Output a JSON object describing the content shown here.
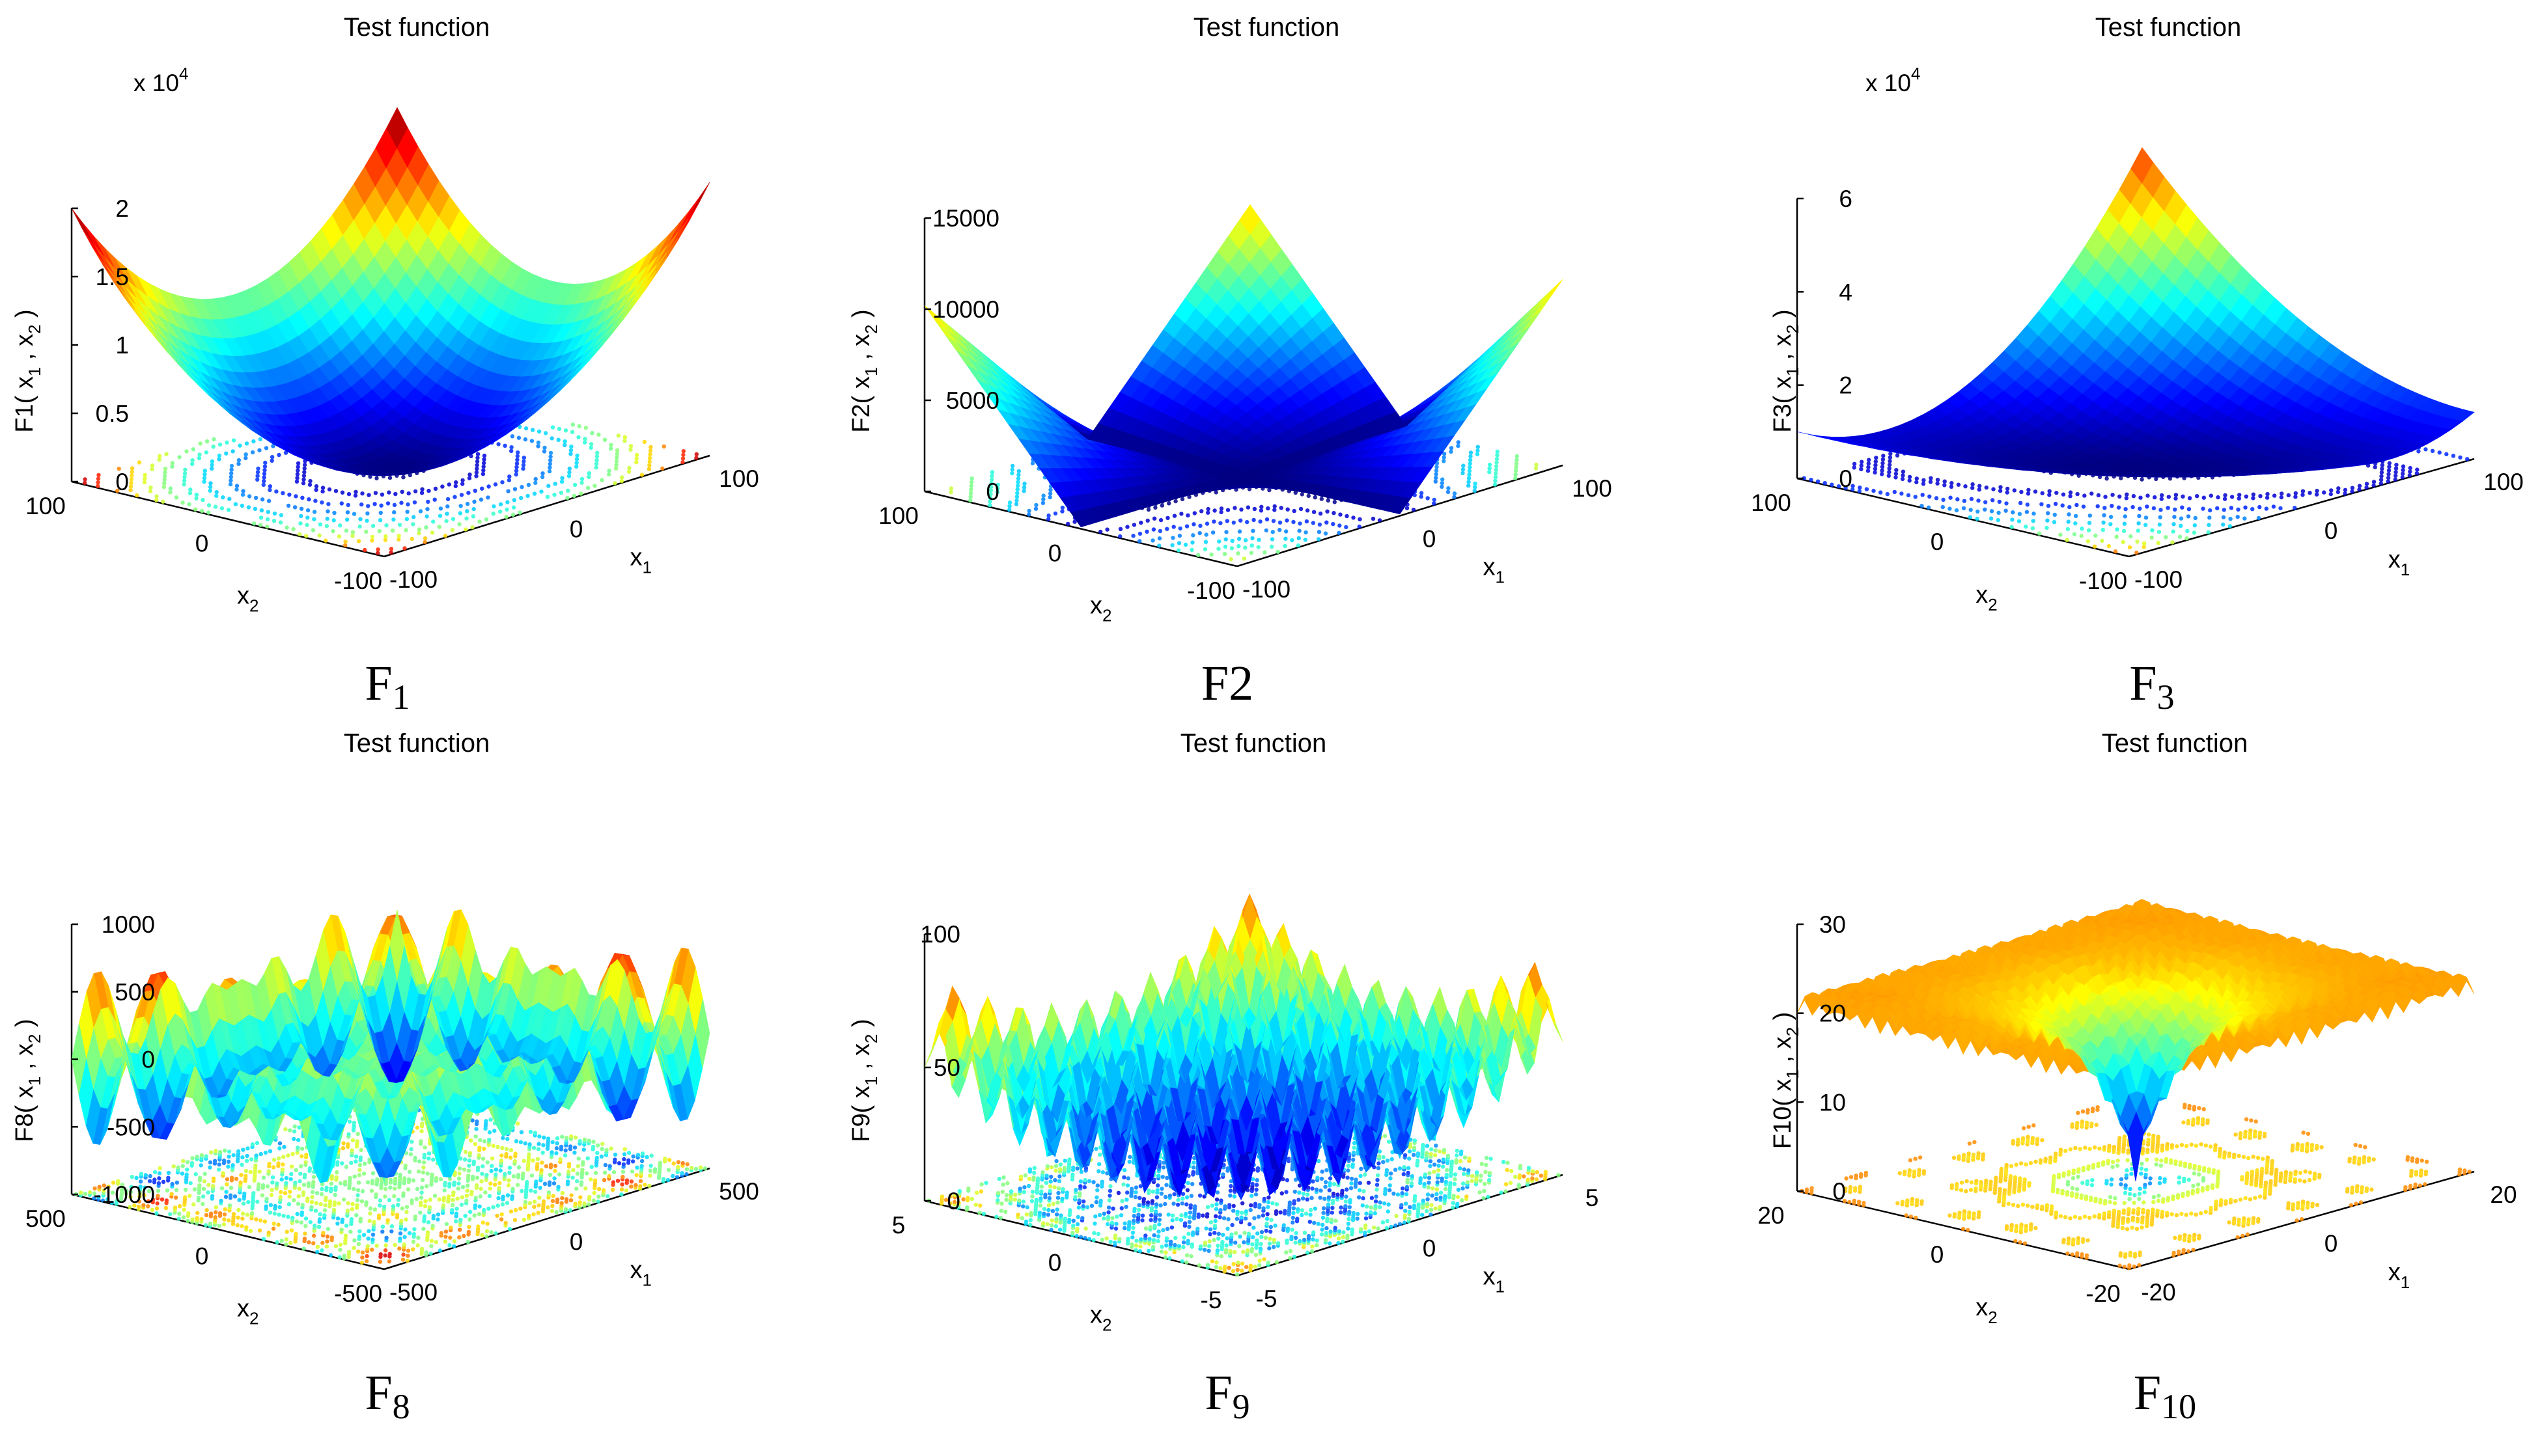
{
  "chart_data": [
    {
      "type": "surface",
      "function": "F1",
      "title": "Test function",
      "caption_main": "F",
      "caption_sub": "1",
      "zlabel": {
        "name": "F1",
        "args": [
          "x",
          "1",
          ",",
          "x",
          "2"
        ]
      },
      "xlabel": {
        "base": "x",
        "sub": "1"
      },
      "ylabel": {
        "base": "x",
        "sub": "2"
      },
      "zlim": [
        0,
        20000
      ],
      "z_ticks": [
        "0",
        "0.5",
        "1",
        "1.5",
        "2"
      ],
      "z_multiplier": {
        "prefix": "x 10",
        "exp": "4"
      },
      "x_ticks": [
        "-100",
        "0",
        "100"
      ],
      "y_ticks": [
        "-100",
        "0",
        "100"
      ],
      "surface": "sphere"
    },
    {
      "type": "surface",
      "function": "F2",
      "title": "Test function",
      "caption_main": "F2",
      "caption_sub": "",
      "zlabel": {
        "name": "F2",
        "args": [
          "x",
          "1",
          ",",
          "x",
          "2"
        ]
      },
      "xlabel": {
        "base": "x",
        "sub": "1"
      },
      "ylabel": {
        "base": "x",
        "sub": "2"
      },
      "zlim": [
        0,
        15000
      ],
      "z_ticks": [
        "0",
        "5000",
        "10000",
        "15000"
      ],
      "x_ticks": [
        "-100",
        "0",
        "100"
      ],
      "y_ticks": [
        "-100",
        "0",
        "100"
      ],
      "surface": "abs-sum-product"
    },
    {
      "type": "surface",
      "function": "F3",
      "title": "Test function",
      "caption_main": "F",
      "caption_sub": "3",
      "zlabel": {
        "name": "F3",
        "args": [
          "x",
          "1",
          ",",
          "x",
          "2"
        ]
      },
      "xlabel": {
        "base": "x",
        "sub": "1"
      },
      "ylabel": {
        "base": "x",
        "sub": "2"
      },
      "zlim": [
        0,
        60000
      ],
      "z_ticks": [
        "0",
        "2",
        "4",
        "6"
      ],
      "z_multiplier": {
        "prefix": "x 10",
        "exp": "4"
      },
      "x_ticks": [
        "-100",
        "0",
        "100"
      ],
      "y_ticks": [
        "-100",
        "0",
        "100"
      ],
      "surface": "schwefel-1.2"
    },
    {
      "type": "surface",
      "function": "F8",
      "title": "Test function",
      "caption_main": "F",
      "caption_sub": "8",
      "zlabel": {
        "name": "F8",
        "args": [
          "x",
          "1",
          ",",
          "x",
          "2"
        ]
      },
      "xlabel": {
        "base": "x",
        "sub": "1"
      },
      "ylabel": {
        "base": "x",
        "sub": "2"
      },
      "zlim": [
        -1000,
        1000
      ],
      "z_ticks": [
        "-1000",
        "-500",
        "0",
        "500",
        "1000"
      ],
      "x_ticks": [
        "-500",
        "0",
        "500"
      ],
      "y_ticks": [
        "-500",
        "0",
        "500"
      ],
      "surface": "schwefel-sine"
    },
    {
      "type": "surface",
      "function": "F9",
      "title": "Test function",
      "caption_main": "F",
      "caption_sub": "9",
      "zlabel": {
        "name": "F9",
        "args": [
          "x",
          "1",
          ",",
          "x",
          "2"
        ]
      },
      "xlabel": {
        "base": "x",
        "sub": "1"
      },
      "ylabel": {
        "base": "x",
        "sub": "2"
      },
      "zlim": [
        0,
        100
      ],
      "z_ticks": [
        "0",
        "50",
        "100"
      ],
      "x_ticks": [
        "-5",
        "0",
        "5"
      ],
      "y_ticks": [
        "-5",
        "0",
        "5"
      ],
      "surface": "rastrigin"
    },
    {
      "type": "surface",
      "function": "F10",
      "title": "Test function",
      "caption_main": "F",
      "caption_sub": "10",
      "zlabel": {
        "name": "F10",
        "args": [
          "x",
          "1",
          ",",
          "x",
          "2"
        ]
      },
      "xlabel": {
        "base": "x",
        "sub": "1"
      },
      "ylabel": {
        "base": "x",
        "sub": "2"
      },
      "zlim": [
        0,
        30
      ],
      "z_ticks": [
        "0",
        "10",
        "20",
        "30"
      ],
      "x_ticks": [
        "-20",
        "0",
        "20"
      ],
      "y_ticks": [
        "-20",
        "0",
        "20"
      ],
      "surface": "ackley"
    }
  ]
}
